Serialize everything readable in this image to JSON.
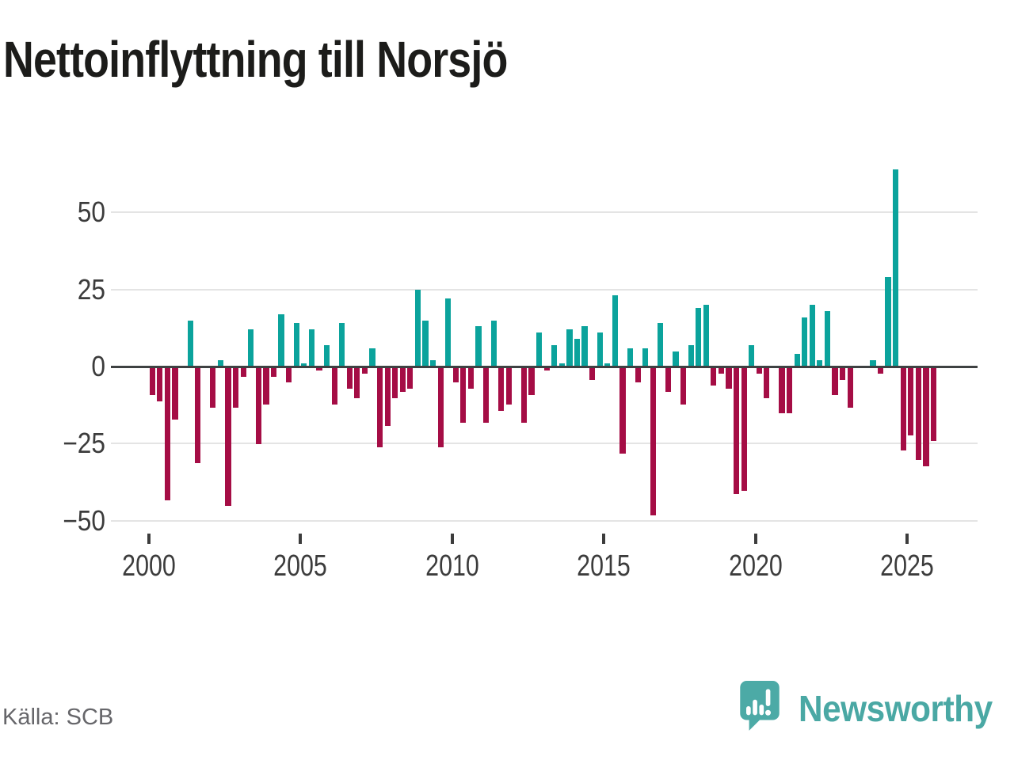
{
  "title": "Nettoinflyttning till Norsjö",
  "source": "Källa: SCB",
  "logo": {
    "text": "Newsworthy",
    "icon": "bar-chart-speech-bubble-icon",
    "color": "#4aa8a4"
  },
  "colors": {
    "positive_bar": "#0ba39c",
    "negative_bar": "#a50d45",
    "grid": "#e4e4e4",
    "zero_axis": "#3e4142",
    "tick_text": "#3c3c3c",
    "muted_text": "#66666a",
    "title_text": "#1c1c1a"
  },
  "chart_data": {
    "type": "bar",
    "title": "Nettoinflyttning till Norsjö",
    "xlabel": "",
    "ylabel": "",
    "grid": true,
    "legend": false,
    "ylim": [
      -52,
      66
    ],
    "y_ticks": [
      50,
      25,
      0,
      -25,
      -50
    ],
    "y_tick_labels": [
      "50",
      "25",
      "0",
      "−25",
      "−50"
    ],
    "x_tick_years": [
      2000,
      2005,
      2010,
      2015,
      2020,
      2025
    ],
    "x_tick_labels": [
      "2000",
      "2005",
      "2010",
      "2015",
      "2020",
      "2025"
    ],
    "x": [
      "2000Q1",
      "2000Q2",
      "2000Q3",
      "2000Q4",
      "2001Q1",
      "2001Q2",
      "2001Q3",
      "2001Q4",
      "2002Q1",
      "2002Q2",
      "2002Q3",
      "2002Q4",
      "2003Q1",
      "2003Q2",
      "2003Q3",
      "2003Q4",
      "2004Q1",
      "2004Q2",
      "2004Q3",
      "2004Q4",
      "2005Q1",
      "2005Q2",
      "2005Q3",
      "2005Q4",
      "2006Q1",
      "2006Q2",
      "2006Q3",
      "2006Q4",
      "2007Q1",
      "2007Q2",
      "2007Q3",
      "2007Q4",
      "2008Q1",
      "2008Q2",
      "2008Q3",
      "2008Q4",
      "2009Q1",
      "2009Q2",
      "2009Q3",
      "2009Q4",
      "2010Q1",
      "2010Q2",
      "2010Q3",
      "2010Q4",
      "2011Q1",
      "2011Q2",
      "2011Q3",
      "2011Q4",
      "2012Q1",
      "2012Q2",
      "2012Q3",
      "2012Q4",
      "2013Q1",
      "2013Q2",
      "2013Q3",
      "2013Q4",
      "2014Q1",
      "2014Q2",
      "2014Q3",
      "2014Q4",
      "2015Q1",
      "2015Q2",
      "2015Q3",
      "2015Q4",
      "2016Q1",
      "2016Q2",
      "2016Q3",
      "2016Q4",
      "2017Q1",
      "2017Q2",
      "2017Q3",
      "2017Q4",
      "2018Q1",
      "2018Q2",
      "2018Q3",
      "2018Q4",
      "2019Q1",
      "2019Q2",
      "2019Q3",
      "2019Q4",
      "2020Q1",
      "2020Q2",
      "2020Q3",
      "2020Q4",
      "2021Q1",
      "2021Q2",
      "2021Q3",
      "2021Q4",
      "2022Q1",
      "2022Q2",
      "2022Q3",
      "2022Q4",
      "2023Q1",
      "2023Q2",
      "2023Q3",
      "2023Q4",
      "2024Q1",
      "2024Q2",
      "2024Q3",
      "2024Q4",
      "2025Q1",
      "2025Q2",
      "2025Q3",
      "2025Q4"
    ],
    "series": [
      {
        "name": "Nettoinflyttning per kvartal",
        "values": [
          -9,
          -11,
          -43,
          -17,
          0,
          15,
          -31,
          0,
          -13,
          2,
          -45,
          -13,
          -3,
          12,
          -25,
          -12,
          -3,
          17,
          -5,
          14,
          1,
          12,
          -1,
          7,
          -12,
          14,
          -7,
          -10,
          -2,
          6,
          -26,
          -19,
          -10,
          -8,
          -7,
          25,
          15,
          2,
          -26,
          22,
          -5,
          -18,
          -7,
          13,
          -18,
          15,
          -14,
          -12,
          0,
          -18,
          -9,
          11,
          -1,
          7,
          1,
          12,
          9,
          13,
          -4,
          11,
          1,
          23,
          -28,
          6,
          -5,
          6,
          -48,
          14,
          -8,
          5,
          -12,
          7,
          19,
          20,
          -6,
          -2,
          -7,
          -41,
          -40,
          7,
          -2,
          -10,
          0,
          -15,
          -15,
          4,
          16,
          20,
          2,
          18,
          -9,
          -4,
          -13,
          0,
          0,
          2,
          -2,
          29,
          64,
          -27,
          -22,
          -30,
          -32,
          -24
        ]
      }
    ]
  }
}
